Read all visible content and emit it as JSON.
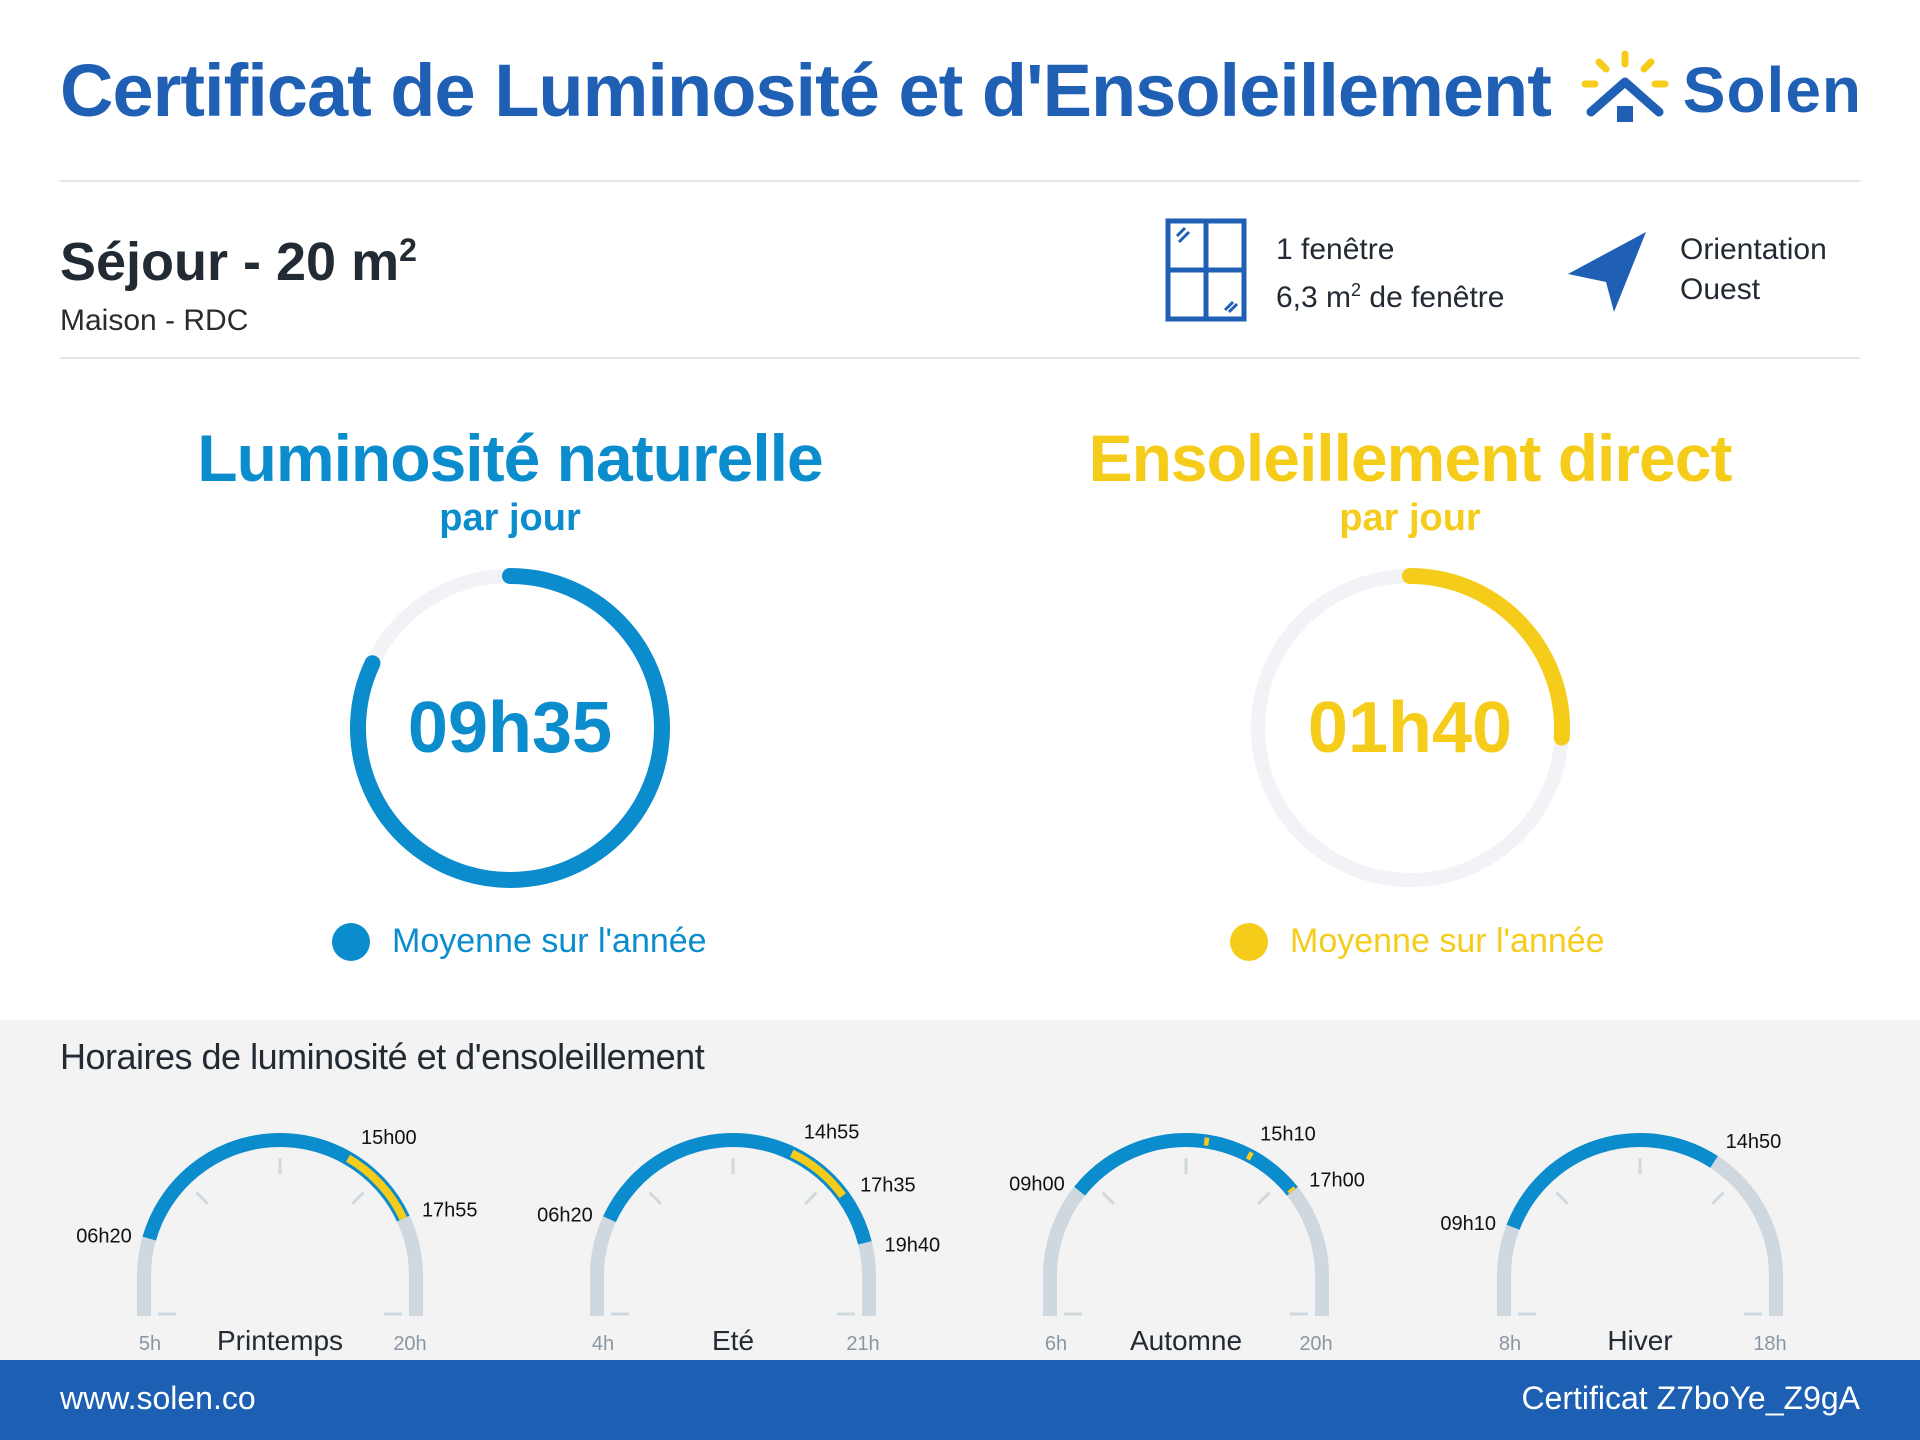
{
  "header": {
    "title": "Certificat de Luminosité et d'Ensoleillement",
    "logo_text": "Solen"
  },
  "room": {
    "name": "Séjour - 20 m",
    "name_exponent": "2",
    "subtitle": "Maison - RDC"
  },
  "window": {
    "count_label": "1 fenêtre",
    "area_value": "6,3 m",
    "area_exponent": "2",
    "area_suffix": " de fenêtre",
    "icon": "window-icon"
  },
  "orientation": {
    "label": "Orientation",
    "value": "Ouest",
    "icon": "compass-arrow-icon"
  },
  "luminosity": {
    "title": "Luminosité naturelle",
    "subtitle": "par jour",
    "value": "09h35",
    "fraction": 0.82,
    "legend": "Moyenne sur l'année",
    "color": "#0a8ccd"
  },
  "sunshine": {
    "title": "Ensoleillement direct",
    "subtitle": "par jour",
    "value": "01h40",
    "fraction": 0.26,
    "legend": "Moyenne sur l'année",
    "color": "#f6cc1b"
  },
  "schedule": {
    "title": "Horaires de luminosité et d'ensoleillement",
    "seasons": [
      {
        "name": "Printemps",
        "min_label": "5h",
        "max_label": "20h",
        "min_hour": 5,
        "max_hour": 20,
        "light_start": "06h20",
        "light_end": "17h55",
        "light_start_h": 6.333,
        "light_end_h": 17.917,
        "sun_segments": [
          [
            15.0,
            17.917
          ]
        ],
        "sun_labels": [
          "15h00",
          "17h55"
        ]
      },
      {
        "name": "Eté",
        "min_label": "4h",
        "max_label": "21h",
        "min_hour": 4,
        "max_hour": 21,
        "light_start": "06h20",
        "light_end": "19h40",
        "light_start_h": 6.333,
        "light_end_h": 19.667,
        "sun_segments": [
          [
            14.917,
            17.583
          ]
        ],
        "sun_labels": [
          "14h55",
          "17h35"
        ]
      },
      {
        "name": "Automne",
        "min_label": "6h",
        "max_label": "20h",
        "min_hour": 6,
        "max_hour": 20,
        "light_start": "09h00",
        "light_end": "17h00",
        "light_start_h": 9.0,
        "light_end_h": 17.0,
        "sun_segments": [
          [
            13.6,
            13.75
          ],
          [
            15.1,
            15.25
          ],
          [
            16.9,
            17.0
          ]
        ],
        "sun_labels": [
          "15h10",
          "17h00"
        ]
      },
      {
        "name": "Hiver",
        "min_label": "8h",
        "max_label": "18h",
        "min_hour": 8,
        "max_hour": 18,
        "light_start": "09h10",
        "light_end": "14h50",
        "light_start_h": 9.167,
        "light_end_h": 14.833,
        "sun_segments": [],
        "sun_labels": []
      }
    ]
  },
  "footer": {
    "website": "www.solen.co",
    "certificate": "Certificat Z7boYe_Z9gA"
  },
  "colors": {
    "brand_blue": "#1f5fb4",
    "light_blue": "#0a8ccd",
    "sun_yellow": "#f6cc1b",
    "track_grey": "#cfd8de",
    "ring_track": "#f1f3f6"
  }
}
